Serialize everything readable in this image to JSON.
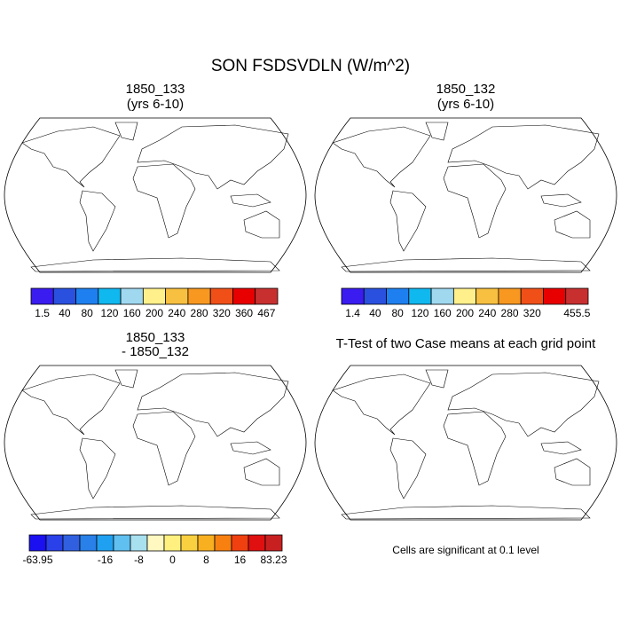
{
  "title": "SON FSDSVDLN (W/m^2)",
  "panels": [
    {
      "title": [
        "1850_133",
        "(yrs 6-10)"
      ],
      "colorbar": {
        "colors": [
          "#3a1cf0",
          "#2a50e0",
          "#1e80f0",
          "#10b8f0",
          "#a0d8f0",
          "#fff08c",
          "#f8c040",
          "#f89820",
          "#f05018",
          "#e80000",
          "#c83030"
        ],
        "labels": [
          1.5,
          40,
          80,
          120,
          160,
          200,
          240,
          280,
          320,
          360,
          467
        ]
      }
    },
    {
      "title": [
        "1850_132",
        "(yrs 6-10)"
      ],
      "colorbar": {
        "colors": [
          "#3a1cf0",
          "#2a50e0",
          "#1e80f0",
          "#10b8f0",
          "#a0d8f0",
          "#fff08c",
          "#f8c040",
          "#f89820",
          "#f05018",
          "#e80000",
          "#c83030"
        ],
        "labels": [
          1.4,
          40,
          80,
          120,
          160,
          200,
          240,
          280,
          320,
          null,
          455.5
        ]
      }
    },
    {
      "title": [
        "1850_133",
        "- 1850_132"
      ],
      "colorbar": {
        "colors": [
          "#1a10f0",
          "#2a40e8",
          "#3060e0",
          "#2880e8",
          "#20a0f0",
          "#60c0f0",
          "#a8e0f0",
          "#fff8c0",
          "#fff080",
          "#f8d040",
          "#f8b020",
          "#f88010",
          "#f04010",
          "#e01010",
          "#c82020"
        ],
        "labels": [
          -63.95,
          null,
          null,
          null,
          -16,
          null,
          -8,
          null,
          0,
          null,
          8,
          null,
          16,
          null,
          83.23
        ]
      }
    },
    {
      "title": [
        "T-Test of two Case means at each grid point"
      ],
      "note": "Cells are significant at 0.1 level"
    }
  ]
}
